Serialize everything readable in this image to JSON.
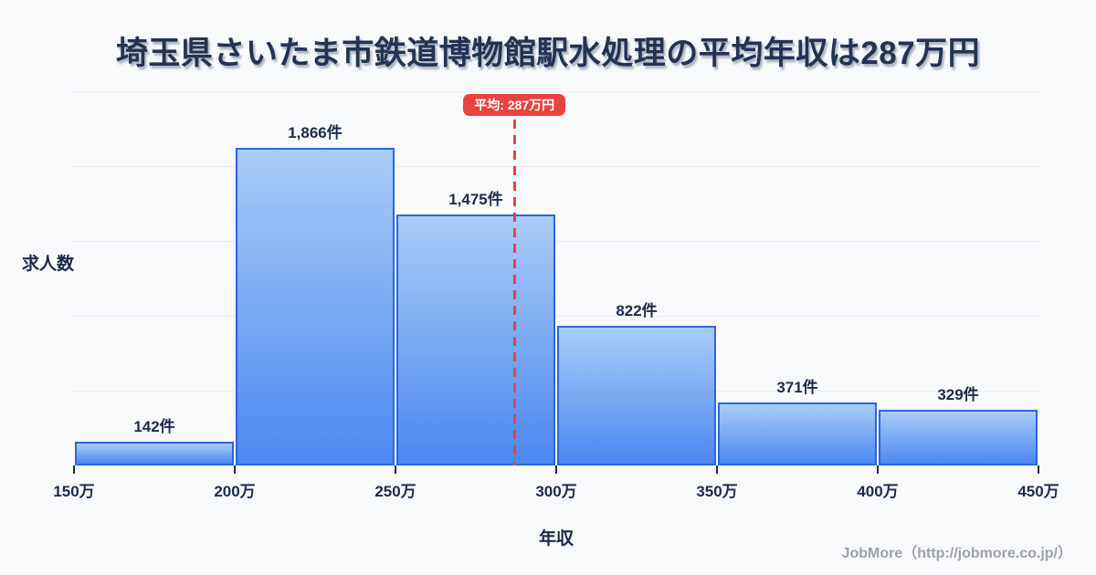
{
  "title": "埼玉県さいたま市鉄道博物館駅水処理の平均年収は287万円",
  "chart_data": {
    "type": "bar",
    "subtype": "histogram",
    "title": "埼玉県さいたま市鉄道博物館駅水処理の平均年収は287万円",
    "xlabel": "年収",
    "ylabel": "求人数",
    "categories": [
      "150万-200万",
      "200万-250万",
      "250万-300万",
      "300万-350万",
      "350万-400万",
      "400万-450万"
    ],
    "values": [
      142,
      1866,
      1475,
      822,
      371,
      329
    ],
    "value_labels": [
      "142件",
      "1,866件",
      "1,475件",
      "822件",
      "371件",
      "329件"
    ],
    "x_tick_labels": [
      "150万",
      "200万",
      "250万",
      "300万",
      "350万",
      "400万",
      "450万"
    ],
    "x_range_man_yen": [
      150,
      450
    ],
    "ylim": [
      0,
      2200
    ],
    "grid": true,
    "y_tick_labels_shown": false,
    "legend": "none",
    "average": {
      "value_man_yen": 287,
      "label": "平均: 287万円"
    }
  },
  "footer": {
    "credit": "JobMore（http://jobmore.co.jp/）"
  },
  "colors": {
    "background": "#f8f9fb",
    "title_text": "#243353",
    "axis_text": "#1e2a4a",
    "bar_border": "#2a66de",
    "bar_gradient_top": "#a9cdf8",
    "bar_gradient_bottom": "#4d87f0",
    "gridline": "#e7eaf1",
    "average_accent": "#e8433e",
    "footer_text": "#9ba0a8"
  }
}
